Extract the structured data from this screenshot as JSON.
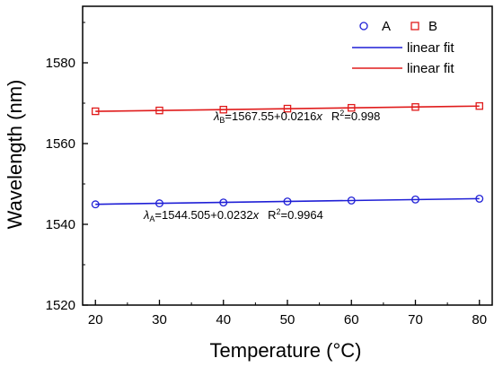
{
  "chart_data": {
    "type": "scatter",
    "xlabel": "Temperature (°C)",
    "ylabel": "Wavelength (nm)",
    "xlim": [
      18,
      82
    ],
    "ylim": [
      1520,
      1594
    ],
    "xticks": [
      20,
      30,
      40,
      50,
      60,
      70,
      80
    ],
    "yticks": [
      1520,
      1540,
      1560,
      1580
    ],
    "x_tick_labels": [
      "20",
      "30",
      "40",
      "50",
      "60",
      "70",
      "80"
    ],
    "y_tick_labels": [
      "1520",
      "1540",
      "1560",
      "1580"
    ],
    "legend_placement": "top-right",
    "grid": false,
    "series": [
      {
        "name": "A",
        "marker": "circle",
        "color": "#1f1fd6",
        "x": [
          20,
          30,
          40,
          50,
          60,
          70,
          80
        ],
        "y": [
          1544.95,
          1545.2,
          1545.4,
          1545.65,
          1545.9,
          1546.15,
          1546.35
        ]
      },
      {
        "name": "B",
        "marker": "square",
        "color": "#e01b1b",
        "x": [
          20,
          30,
          40,
          50,
          60,
          70,
          80
        ],
        "y": [
          1568.0,
          1568.2,
          1568.4,
          1568.65,
          1568.85,
          1569.05,
          1569.3
        ]
      }
    ],
    "fits": [
      {
        "name": "linear fit",
        "color": "#1f1fd6",
        "intercept": 1544.505,
        "slope": 0.0232,
        "x_range": [
          20,
          80
        ]
      },
      {
        "name": "linear fit",
        "color": "#e01b1b",
        "intercept": 1567.55,
        "slope": 0.0216,
        "x_range": [
          20,
          80
        ]
      }
    ],
    "annotations": {
      "b": {
        "lambda": "λ",
        "sub": "B",
        "eq": "=1567.55+0.0216",
        "var": "x",
        "r_label": "R",
        "r_sup": "2",
        "r_value": "=0.998"
      },
      "a": {
        "lambda": "λ",
        "sub": "A",
        "eq": "=1544.505+0.0232",
        "var": "x",
        "r_label": "R",
        "r_sup": "2",
        "r_value": "=0.9964"
      }
    }
  }
}
